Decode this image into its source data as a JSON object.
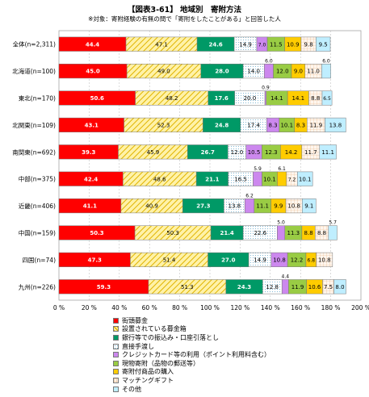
{
  "title": "【図表3-61】 地域別　寄附方法",
  "subtitle": "※対象：寄附経験の有無の問で「寄附をしたことがある」と回答した人",
  "chart_data": {
    "type": "bar",
    "orientation": "horizontal",
    "stacked": true,
    "xlim": [
      0,
      200
    ],
    "x_ticks": [
      "0 %",
      "20 %",
      "40 %",
      "60 %",
      "80 %",
      "100 %",
      "120 %",
      "140 %",
      "160 %",
      "180 %",
      "200 %"
    ],
    "grid": true,
    "legend_position": "bottom",
    "categories": [
      "全体(n=2,311)",
      "北海道(n=100)",
      "東北(n=170)",
      "北関東(n=109)",
      "南関東(n=692)",
      "中部(n=375)",
      "近畿(n=406)",
      "中国(n=159)",
      "四国(n=74)",
      "九州(n=226)"
    ],
    "series": [
      {
        "name": "街頭募金",
        "color": "#ff0000",
        "values": [
          44.4,
          45.0,
          50.6,
          43.1,
          39.3,
          42.4,
          41.1,
          50.3,
          47.3,
          59.3
        ]
      },
      {
        "name": "設置されている募金箱",
        "color": "#ffe680",
        "values": [
          47.1,
          49.0,
          48.2,
          52.3,
          45.9,
          48.6,
          40.9,
          50.3,
          51.4,
          51.3
        ]
      },
      {
        "name": "銀行等での振込み・口座引落とし",
        "color": "#009966",
        "values": [
          24.6,
          28.0,
          17.6,
          24.8,
          26.7,
          21.1,
          27.3,
          21.4,
          27.0,
          24.3
        ]
      },
      {
        "name": "直接手渡し",
        "color": "#eaf7fb",
        "values": [
          14.9,
          14.0,
          20.0,
          17.4,
          12.0,
          16.5,
          13.8,
          22.6,
          14.9,
          12.8
        ]
      },
      {
        "name": "クレジットカード等の利用（ポイント利用料含む）",
        "color": "#cc88ee",
        "values": [
          7.0,
          6.0,
          0.9,
          8.3,
          10.5,
          5.9,
          6.2,
          5.0,
          10.8,
          4.4
        ]
      },
      {
        "name": "現物寄附（品物の郵送等）",
        "color": "#99cc44",
        "values": [
          11.5,
          12.0,
          14.1,
          10.1,
          12.3,
          10.1,
          11.1,
          11.3,
          12.2,
          11.9
        ]
      },
      {
        "name": "寄附付商品の購入",
        "color": "#ffcc00",
        "values": [
          10.9,
          9.0,
          14.1,
          8.3,
          14.2,
          6.1,
          9.9,
          8.8,
          6.8,
          10.6
        ]
      },
      {
        "name": "マッチングギフト",
        "color": "#ffffff",
        "values": [
          9.8,
          11.0,
          8.8,
          11.9,
          11.7,
          7.2,
          10.8,
          8.8,
          10.8,
          7.5
        ]
      },
      {
        "name": "その他",
        "color": "#bfeeff",
        "values": [
          9.5,
          6.0,
          6.5,
          13.8,
          11.1,
          10.1,
          9.1,
          5.7,
          0,
          8.0
        ]
      }
    ]
  }
}
